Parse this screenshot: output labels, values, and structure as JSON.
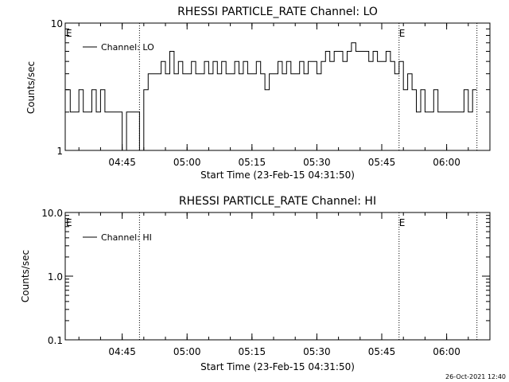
{
  "timestamp": "26-Oct-2021 12:40",
  "chart_data": [
    {
      "type": "line",
      "title": "RHESSI PARTICLE_RATE Channel: LO",
      "xlabel": "Start Time (23-Feb-15 04:31:50)",
      "ylabel": "Counts/sec",
      "yscale": "log",
      "ylim": [
        1,
        10
      ],
      "ytick_labels": [
        "1",
        "10"
      ],
      "xlim": [
        "04:31:50",
        "06:10:00"
      ],
      "xtick_labels": [
        "04:45",
        "05:00",
        "05:15",
        "05:30",
        "05:45",
        "06:00"
      ],
      "legend": [
        "Channel: LO"
      ],
      "legend_position": "top-left",
      "event_markers": [
        {
          "label": "E",
          "time": "04:31:50"
        },
        {
          "label": "E",
          "time": "05:49:00"
        }
      ],
      "vertical_dotted_lines": [
        "04:49:00",
        "05:49:00",
        "06:07:00"
      ],
      "series": [
        {
          "name": "Channel: LO",
          "x": [
            "04:32",
            "04:33",
            "04:34",
            "04:35",
            "04:36",
            "04:37",
            "04:38",
            "04:39",
            "04:40",
            "04:41",
            "04:42",
            "04:43",
            "04:44",
            "04:45",
            "04:46",
            "04:47",
            "04:48",
            "04:49",
            "04:50",
            "04:51",
            "04:52",
            "04:53",
            "04:54",
            "04:55",
            "04:56",
            "04:57",
            "04:58",
            "04:59",
            "05:00",
            "05:01",
            "05:02",
            "05:03",
            "05:04",
            "05:05",
            "05:06",
            "05:07",
            "05:08",
            "05:09",
            "05:10",
            "05:11",
            "05:12",
            "05:13",
            "05:14",
            "05:15",
            "05:16",
            "05:17",
            "05:18",
            "05:19",
            "05:20",
            "05:21",
            "05:22",
            "05:23",
            "05:24",
            "05:25",
            "05:26",
            "05:27",
            "05:28",
            "05:29",
            "05:30",
            "05:31",
            "05:32",
            "05:33",
            "05:34",
            "05:35",
            "05:36",
            "05:37",
            "05:38",
            "05:39",
            "05:40",
            "05:41",
            "05:42",
            "05:43",
            "05:44",
            "05:45",
            "05:46",
            "05:47",
            "05:48",
            "05:49",
            "05:50",
            "05:51",
            "05:52",
            "05:53",
            "05:54",
            "05:55",
            "05:56",
            "05:57",
            "05:58",
            "05:59",
            "06:00",
            "06:01",
            "06:02",
            "06:03",
            "06:04",
            "06:05",
            "06:06"
          ],
          "values": [
            3,
            2,
            2,
            3,
            2,
            2,
            3,
            2,
            3,
            2,
            2,
            2,
            2,
            1,
            2,
            2,
            2,
            1,
            3,
            4,
            4,
            4,
            5,
            4,
            6,
            4,
            5,
            4,
            4,
            5,
            4,
            4,
            5,
            4,
            5,
            4,
            5,
            4,
            4,
            5,
            4,
            5,
            4,
            4,
            5,
            4,
            3,
            4,
            4,
            5,
            4,
            5,
            4,
            4,
            5,
            4,
            5,
            5,
            4,
            5,
            6,
            5,
            6,
            6,
            5,
            6,
            7,
            6,
            6,
            6,
            5,
            6,
            5,
            5,
            6,
            5,
            4,
            5,
            3,
            4,
            3,
            2,
            3,
            2,
            2,
            3,
            2,
            2,
            2,
            2,
            2,
            2,
            3,
            2,
            3
          ]
        }
      ]
    },
    {
      "type": "line",
      "title": "RHESSI PARTICLE_RATE Channel: HI",
      "xlabel": "Start Time (23-Feb-15 04:31:50)",
      "ylabel": "Counts/sec",
      "yscale": "log",
      "ylim": [
        0.1,
        10
      ],
      "ytick_labels": [
        "0.1",
        "1.0",
        "10.0"
      ],
      "xlim": [
        "04:31:50",
        "06:10:00"
      ],
      "xtick_labels": [
        "04:45",
        "05:00",
        "05:15",
        "05:30",
        "05:45",
        "06:00"
      ],
      "legend": [
        "Channel: HI"
      ],
      "legend_position": "top-left",
      "event_markers": [
        {
          "label": "E",
          "time": "04:31:50"
        },
        {
          "label": "E",
          "time": "05:49:00"
        }
      ],
      "vertical_dotted_lines": [
        "04:49:00",
        "05:49:00",
        "06:07:00"
      ],
      "series": [
        {
          "name": "Channel: HI",
          "x": [],
          "values": []
        }
      ]
    }
  ]
}
